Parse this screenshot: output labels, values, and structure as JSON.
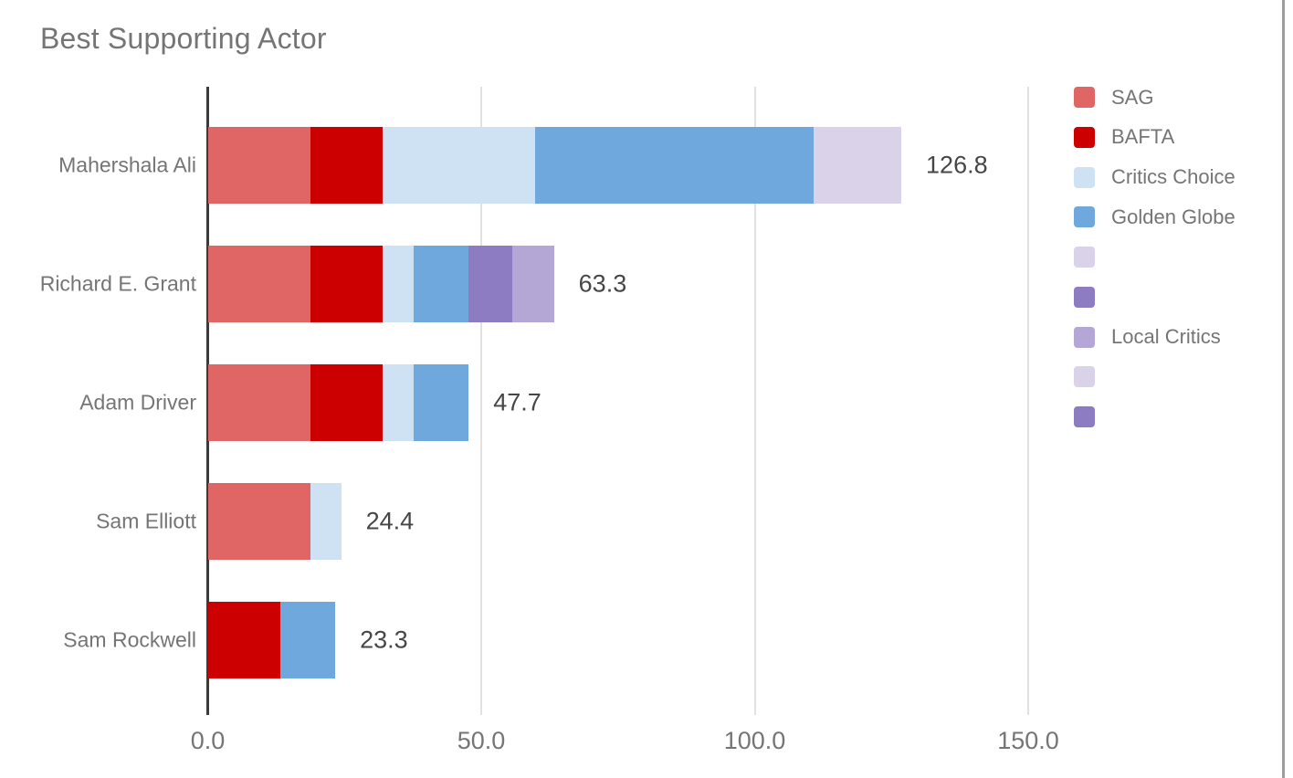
{
  "chart_data": {
    "type": "bar",
    "orientation": "horizontal",
    "stacked": true,
    "title": "Best Supporting Actor",
    "categories": [
      "Mahershala Ali",
      "Richard E. Grant",
      "Adam Driver",
      "Sam Elliott",
      "Sam Rockwell"
    ],
    "series": [
      {
        "name": "SAG",
        "color": "#e06666",
        "values": [
          18.7,
          18.7,
          18.7,
          18.7,
          0
        ]
      },
      {
        "name": "BAFTA",
        "color": "#cc0000",
        "values": [
          13.3,
          13.3,
          13.3,
          0,
          13.3
        ]
      },
      {
        "name": "Critics Choice",
        "color": "#cfe2f3",
        "values": [
          27.9,
          5.6,
          5.6,
          5.7,
          0
        ]
      },
      {
        "name": "Golden Globe",
        "color": "#6fa8dc",
        "values": [
          50.8,
          10.1,
          10.1,
          0,
          10.0
        ]
      },
      {
        "name": "",
        "color": "#d9d2e9",
        "values": [
          16.1,
          0,
          0,
          0,
          0
        ]
      },
      {
        "name": "",
        "color": "#8e7cc3",
        "values": [
          0,
          8.0,
          0,
          0,
          0
        ]
      },
      {
        "name": "Local Critics",
        "color": "#b4a7d6",
        "values": [
          0,
          7.6,
          0,
          0,
          0
        ]
      },
      {
        "name": "",
        "color": "#d9d2e9",
        "values": [
          0,
          0,
          0,
          0,
          0
        ]
      },
      {
        "name": "",
        "color": "#8e7cc3",
        "values": [
          0,
          0,
          0,
          0,
          0
        ]
      }
    ],
    "totals": [
      "126.8",
      "63.3",
      "47.7",
      "24.4",
      "23.3"
    ],
    "x_ticks": [
      "0.0",
      "50.0",
      "100.0",
      "150.0"
    ],
    "x_tick_values": [
      0,
      50,
      100,
      150
    ],
    "xlim": [
      0,
      154
    ],
    "grid": true,
    "legend_position": "right"
  }
}
